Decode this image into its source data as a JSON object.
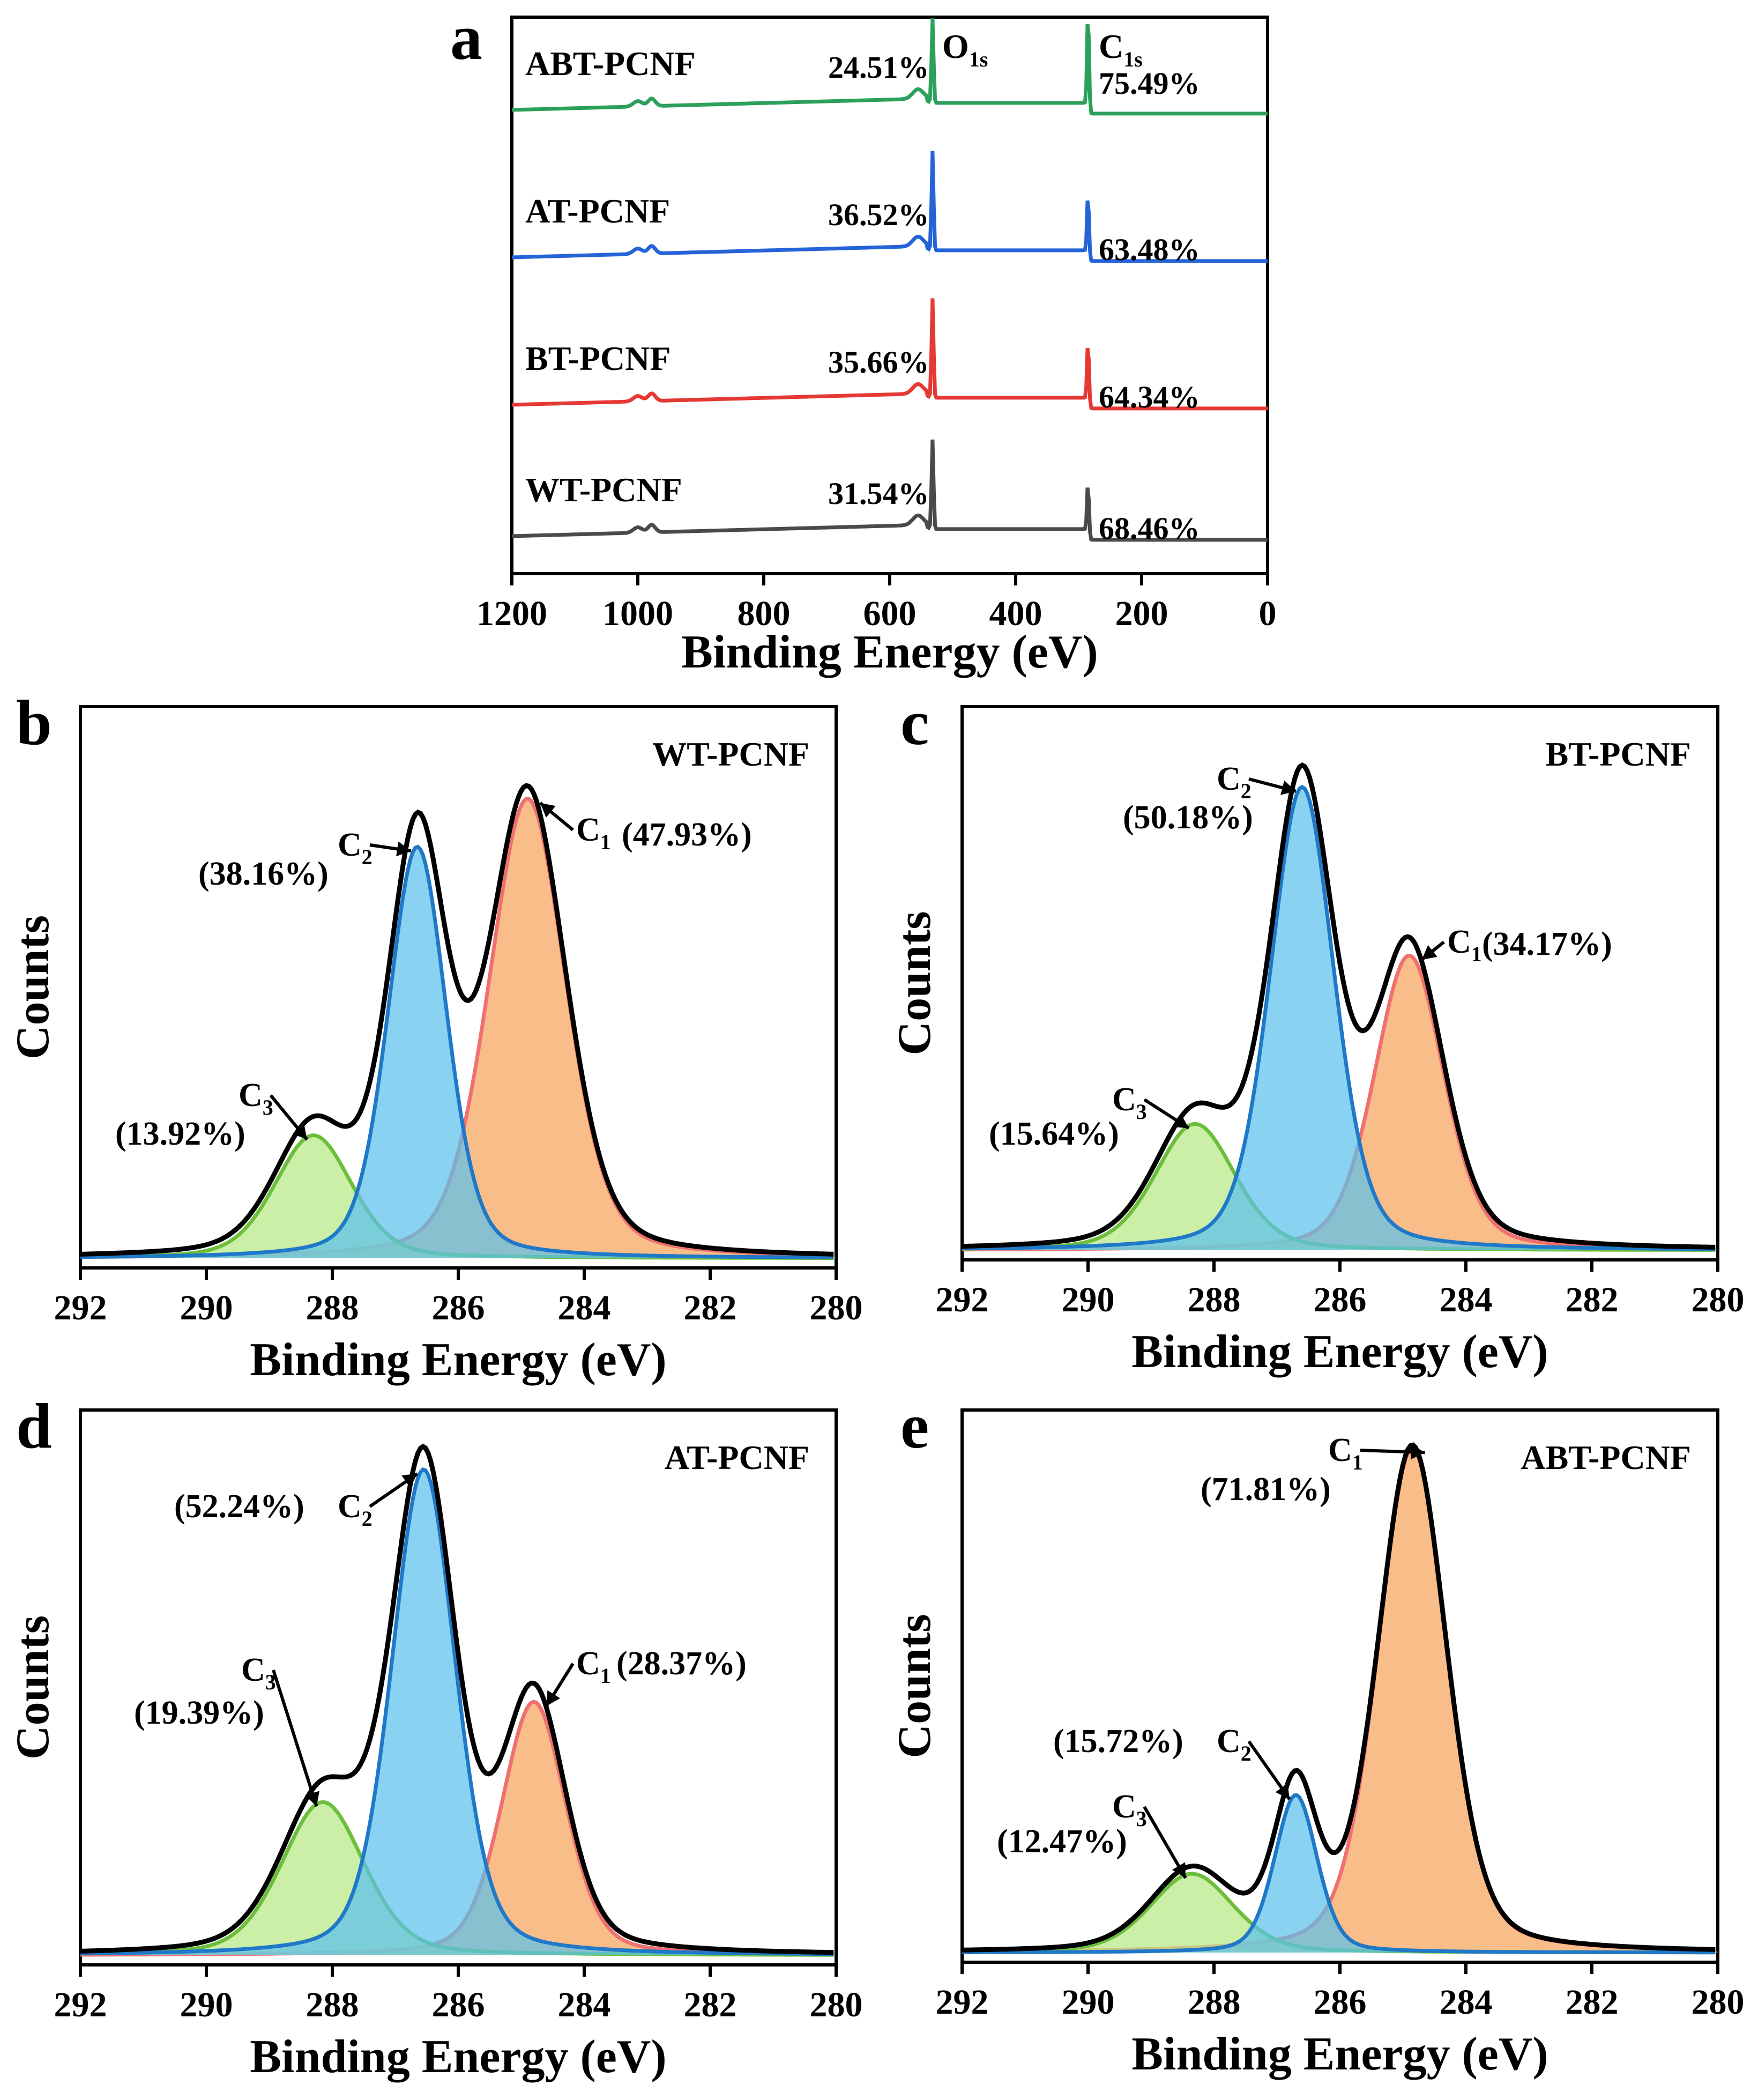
{
  "colors": {
    "ABT-PCNF": "#2ca05a",
    "AT-PCNF": "#2563d8",
    "BT-PCNF": "#e53935",
    "WT-PCNF": "#4a4a4a",
    "C1_fill": "#f7a35c",
    "C1_line": "#f07070",
    "C2_fill": "#5bc0eb",
    "C2_line": "#1f78c8",
    "C3_fill": "#b8e986",
    "C3_line": "#6cbf3c"
  },
  "chart_data": [
    {
      "panel": "a",
      "type": "line",
      "xlabel": "Binding Energy (eV)",
      "ylabel": "",
      "xlim": [
        1200,
        0
      ],
      "xticks": [
        "1200",
        "1000",
        "800",
        "600",
        "400",
        "200",
        "0"
      ],
      "peak_labels": [
        {
          "main": "O",
          "sub": "1s",
          "x": 532
        },
        {
          "main": "C",
          "sub": "1s",
          "x": 284.8
        }
      ],
      "series": [
        {
          "name": "ABT-PCNF",
          "o1s_percent": "24.51%",
          "c1s_percent": "75.49%",
          "o_peak_height": 0.85,
          "c_peak_height": 0.95
        },
        {
          "name": "AT-PCNF",
          "o1s_percent": "36.52%",
          "c1s_percent": "63.48%",
          "o_peak_height": 1.0,
          "c_peak_height": 0.6
        },
        {
          "name": "BT-PCNF",
          "o1s_percent": "35.66%",
          "c1s_percent": "64.34%",
          "o_peak_height": 1.0,
          "c_peak_height": 0.6
        },
        {
          "name": "WT-PCNF",
          "o1s_percent": "31.54%",
          "c1s_percent": "68.46%",
          "o_peak_height": 0.9,
          "c_peak_height": 0.5
        }
      ]
    },
    {
      "panel": "b",
      "type": "area",
      "title": "WT-PCNF",
      "xlabel": "Binding Energy (eV)",
      "ylabel": "Counts",
      "xlim": [
        292,
        280
      ],
      "xticks": [
        "292",
        "290",
        "288",
        "286",
        "284",
        "282",
        "280"
      ],
      "components": [
        {
          "name": "C1",
          "sub": "1",
          "center": 284.9,
          "height": 0.86,
          "width": 1.45,
          "percent": "(47.93%)"
        },
        {
          "name": "C2",
          "sub": "2",
          "center": 286.65,
          "height": 0.77,
          "width": 1.1,
          "percent": "(38.16%)"
        },
        {
          "name": "C3",
          "sub": "3",
          "center": 288.3,
          "height": 0.23,
          "width": 1.45,
          "percent": "(13.92%)"
        }
      ]
    },
    {
      "panel": "c",
      "type": "area",
      "title": "BT-PCNF",
      "xlabel": "Binding Energy (eV)",
      "ylabel": "Counts",
      "xlim": [
        292,
        280
      ],
      "xticks": [
        "292",
        "290",
        "288",
        "286",
        "284",
        "282",
        "280"
      ],
      "components": [
        {
          "name": "C1",
          "sub": "1",
          "center": 284.9,
          "height": 0.56,
          "width": 1.3,
          "percent": "(34.17%)"
        },
        {
          "name": "C2",
          "sub": "2",
          "center": 286.6,
          "height": 0.88,
          "width": 1.2,
          "percent": "(50.18%)"
        },
        {
          "name": "C3",
          "sub": "3",
          "center": 288.3,
          "height": 0.24,
          "width": 1.5,
          "percent": "(15.64%)"
        }
      ]
    },
    {
      "panel": "d",
      "type": "area",
      "title": "AT-PCNF",
      "xlabel": "Binding Energy (eV)",
      "ylabel": "Counts",
      "xlim": [
        292,
        280
      ],
      "xticks": [
        "292",
        "290",
        "288",
        "286",
        "284",
        "282",
        "280"
      ],
      "components": [
        {
          "name": "C1",
          "sub": "1",
          "center": 284.8,
          "height": 0.48,
          "width": 1.2,
          "percent": "(28.37%)"
        },
        {
          "name": "C2",
          "sub": "2",
          "center": 286.55,
          "height": 0.92,
          "width": 1.2,
          "percent": "(52.24%)"
        },
        {
          "name": "C3",
          "sub": "3",
          "center": 288.15,
          "height": 0.29,
          "width": 1.55,
          "percent": "(19.39%)"
        }
      ]
    },
    {
      "panel": "e",
      "type": "area",
      "title": "ABT-PCNF",
      "xlabel": "Binding Energy (eV)",
      "ylabel": "Counts",
      "xlim": [
        292,
        280
      ],
      "xticks": [
        "292",
        "290",
        "288",
        "286",
        "284",
        "282",
        "280"
      ],
      "components": [
        {
          "name": "C1",
          "sub": "1",
          "center": 284.85,
          "height": 0.96,
          "width": 1.3,
          "percent": "(71.81%)"
        },
        {
          "name": "C2",
          "sub": "2",
          "center": 286.7,
          "height": 0.3,
          "width": 0.8,
          "percent": "(15.72%)"
        },
        {
          "name": "C3",
          "sub": "3",
          "center": 288.35,
          "height": 0.15,
          "width": 1.55,
          "percent": "(12.47%)"
        }
      ]
    }
  ]
}
